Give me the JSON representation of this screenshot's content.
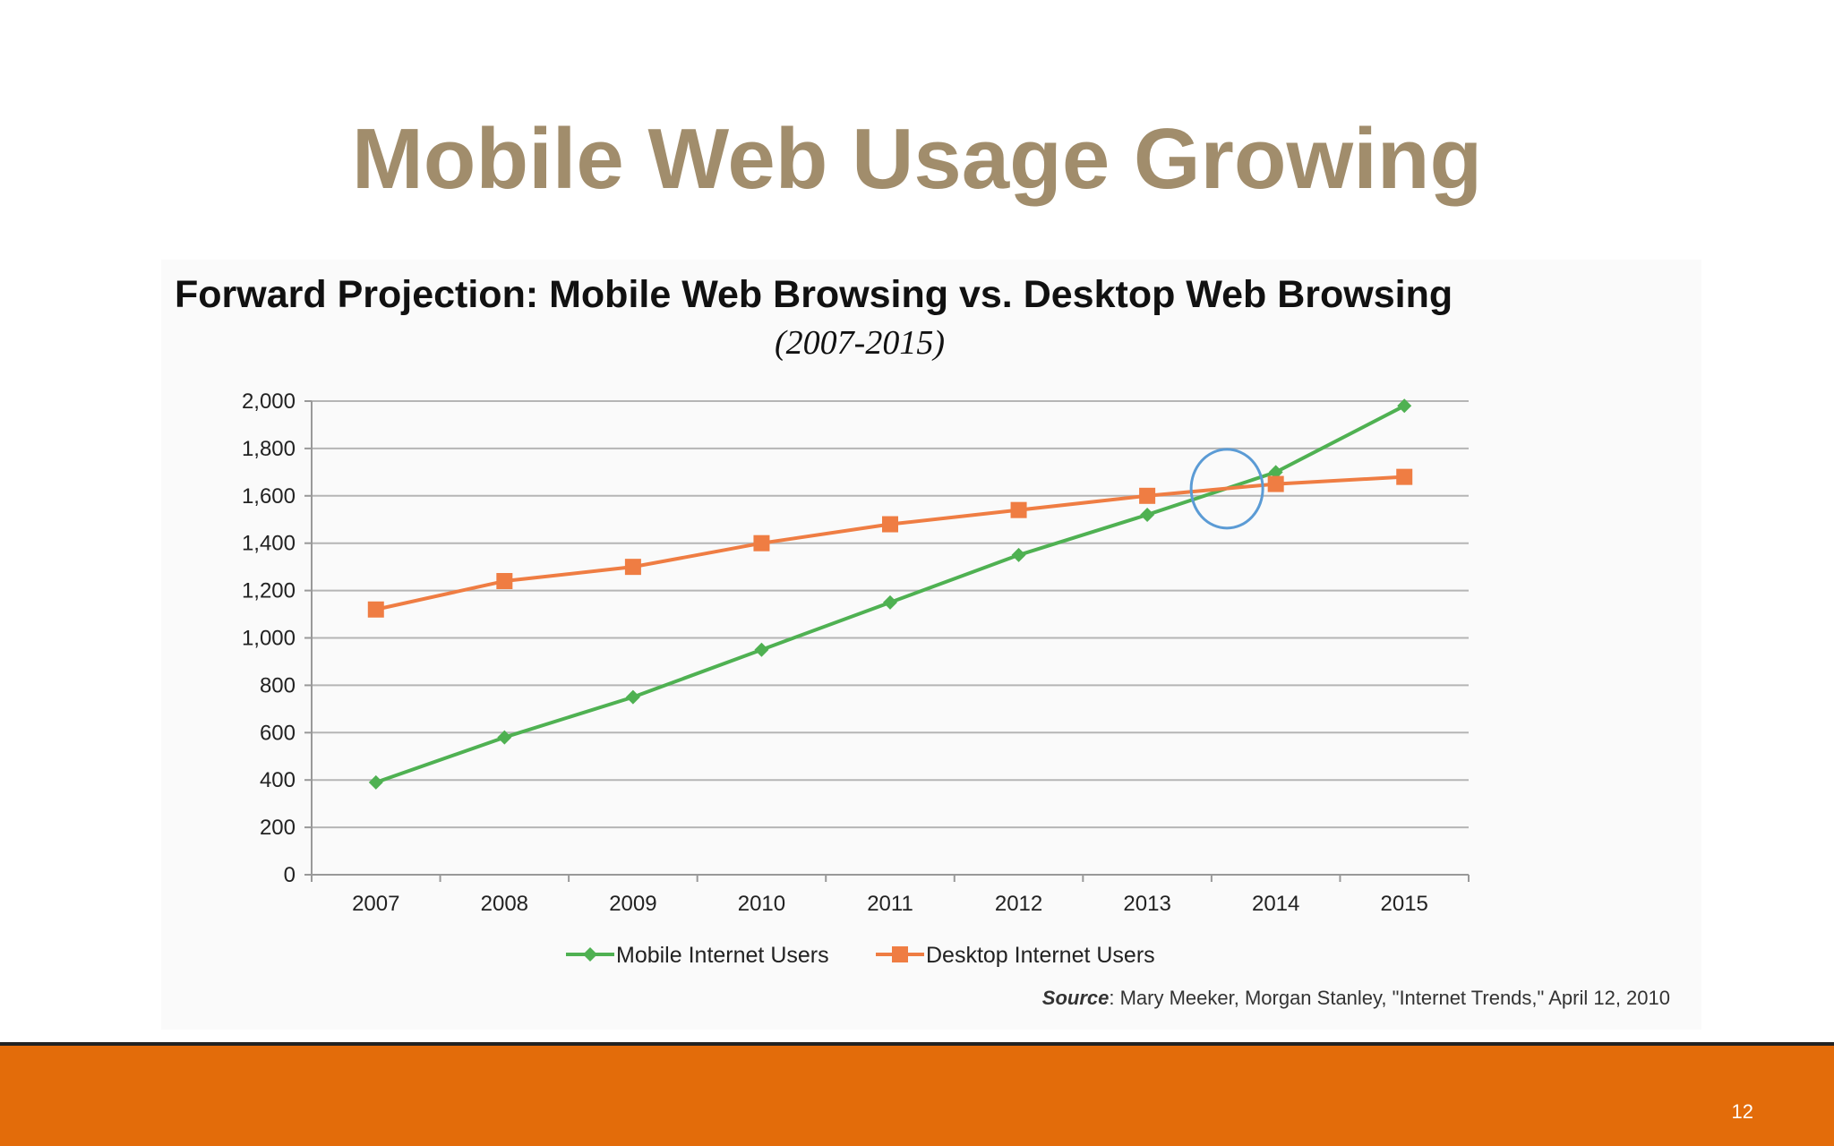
{
  "slide": {
    "title": "Mobile Web Usage Growing",
    "page_number": "12",
    "footer_color": "#e36c0a",
    "title_color": "#a18d6c"
  },
  "chart_data": {
    "type": "line",
    "title": "Forward Projection: Mobile Web Browsing vs. Desktop Web Browsing",
    "subtitle": "(2007-2015)",
    "xlabel": "",
    "ylabel": "",
    "categories": [
      "2007",
      "2008",
      "2009",
      "2010",
      "2011",
      "2012",
      "2013",
      "2014",
      "2015"
    ],
    "ylim": [
      0,
      2000
    ],
    "yticks": [
      0,
      200,
      400,
      600,
      800,
      1000,
      1200,
      1400,
      1600,
      1800,
      2000
    ],
    "ytick_labels": [
      "0",
      "200",
      "400",
      "600",
      "800",
      "1,000",
      "1,200",
      "1,400",
      "1,600",
      "1,800",
      "2,000"
    ],
    "grid": true,
    "legend_position": "bottom",
    "series": [
      {
        "name": "Mobile Internet Users",
        "marker": "diamond",
        "color": "#4fb152",
        "values": [
          390,
          580,
          750,
          950,
          1150,
          1350,
          1520,
          1700,
          1980
        ]
      },
      {
        "name": "Desktop Internet Users",
        "marker": "square",
        "color": "#ef7d43",
        "values": [
          1120,
          1240,
          1300,
          1400,
          1480,
          1540,
          1600,
          1650,
          1680
        ]
      }
    ],
    "annotations": [
      {
        "type": "circle",
        "color": "#5b9bd5",
        "x": 2013.62,
        "y": 1630,
        "meaning": "crossover"
      }
    ],
    "source": {
      "label": "Source",
      "text": ": Mary Meeker, Morgan Stanley, \"Internet Trends,\" April 12, 2010"
    }
  }
}
